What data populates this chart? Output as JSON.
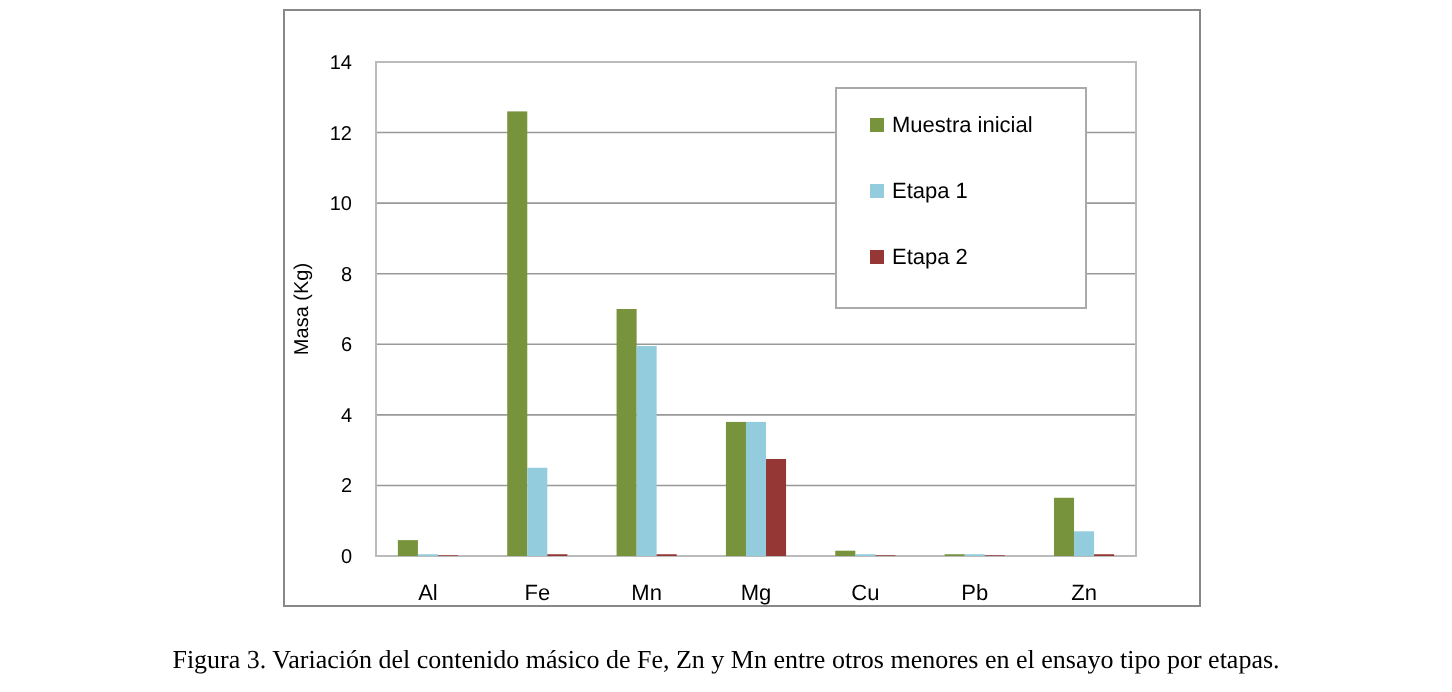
{
  "chart_data": {
    "type": "bar",
    "ylabel": "Masa (Kg)",
    "categories": [
      "Al",
      "Fe",
      "Mn",
      "Mg",
      "Cu",
      "Pb",
      "Zn"
    ],
    "series": [
      {
        "name": "Muestra inicial",
        "color": "#77933c",
        "values": [
          0.45,
          12.6,
          7.0,
          3.8,
          0.15,
          0.05,
          1.65
        ]
      },
      {
        "name": "Etapa 1",
        "color": "#93cddd",
        "values": [
          0.05,
          2.5,
          5.95,
          3.8,
          0.05,
          0.05,
          0.7
        ]
      },
      {
        "name": "Etapa 2",
        "color": "#953735",
        "values": [
          0.02,
          0.05,
          0.05,
          2.75,
          0.02,
          0.02,
          0.05
        ]
      }
    ],
    "ylim": [
      0,
      14
    ],
    "yticks": [
      0,
      2,
      4,
      6,
      8,
      10,
      12,
      14
    ],
    "grid": "y",
    "legend": "top right",
    "annotations": [
      "Figura 3. Variación del contenido másico de Fe, Zn y Mn entre otros menores en el ensayo tipo por etapas."
    ]
  }
}
